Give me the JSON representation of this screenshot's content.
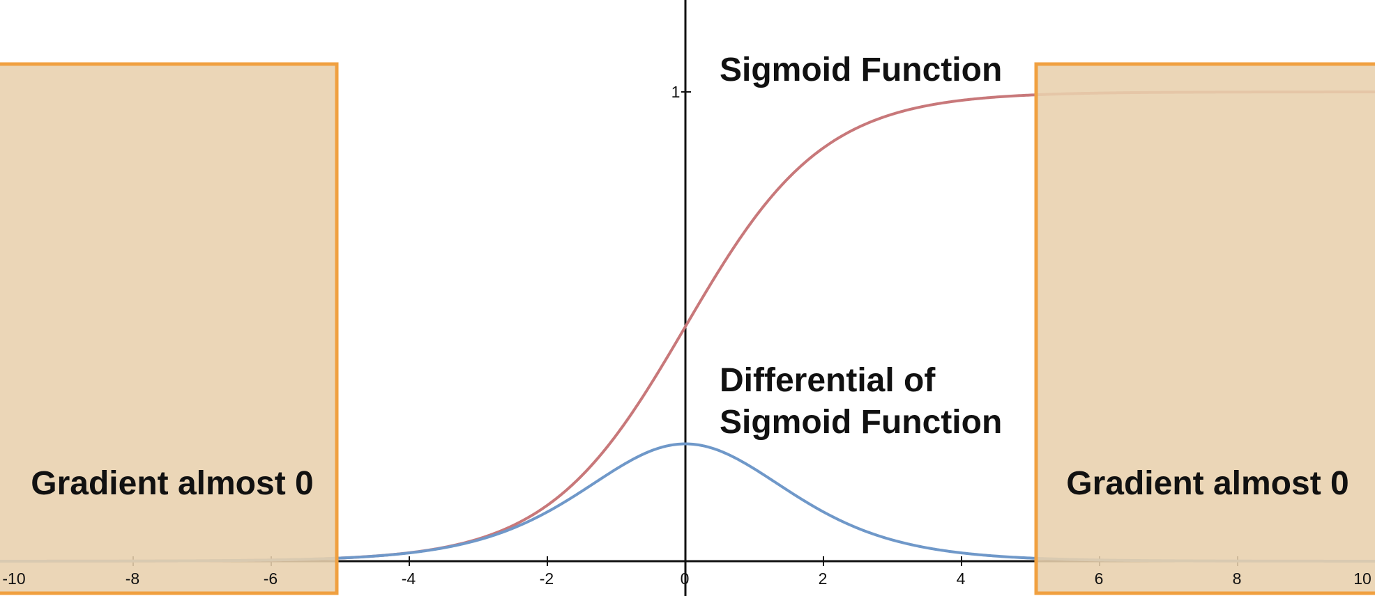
{
  "chart_data": {
    "type": "line",
    "title": "",
    "xlabel": "",
    "ylabel": "",
    "xlim": [
      -10,
      10
    ],
    "ylim": [
      0,
      1
    ],
    "grid": false,
    "x_ticks": [
      "-10",
      "-8",
      "-6",
      "-4",
      "-2",
      "0",
      "2",
      "4",
      "6",
      "8",
      "10"
    ],
    "y_ticks": [
      "1"
    ],
    "series": [
      {
        "name": "Sigmoid Function",
        "function": "1/(1+exp(-x))",
        "color": "#c8787a",
        "x": [
          -10,
          -8,
          -6,
          -5,
          -4,
          -3,
          -2,
          -1,
          0,
          1,
          2,
          3,
          4,
          5,
          6,
          8,
          10
        ],
        "values": [
          0.0,
          0.0003,
          0.0025,
          0.0067,
          0.018,
          0.0474,
          0.1192,
          0.2689,
          0.5,
          0.7311,
          0.8808,
          0.9526,
          0.982,
          0.9933,
          0.9975,
          0.9997,
          1.0
        ]
      },
      {
        "name": "Differential of Sigmoid Function",
        "function": "exp(-x)/(1+exp(-x))^2",
        "color": "#6f98c9",
        "x": [
          -10,
          -8,
          -6,
          -5,
          -4,
          -3,
          -2,
          -1,
          0,
          1,
          2,
          3,
          4,
          5,
          6,
          8,
          10
        ],
        "values": [
          0.0,
          0.0003,
          0.0025,
          0.0066,
          0.0177,
          0.0452,
          0.105,
          0.1966,
          0.25,
          0.1966,
          0.105,
          0.0452,
          0.0177,
          0.0066,
          0.0025,
          0.0003,
          0.0
        ]
      }
    ],
    "highlight_regions": [
      {
        "x_range": [
          -10,
          -5
        ],
        "label": "Gradient almost 0"
      },
      {
        "x_range": [
          5,
          10
        ],
        "label": "Gradient almost 0"
      }
    ],
    "annotations": [
      {
        "text": "Sigmoid Function",
        "series": 0
      },
      {
        "text_lines": [
          "Differential of",
          "Sigmoid Function"
        ],
        "series": 1
      }
    ],
    "colors": {
      "region_fill": "#e8d0ad",
      "region_border": "#f0a040",
      "axis": "#111111"
    }
  }
}
